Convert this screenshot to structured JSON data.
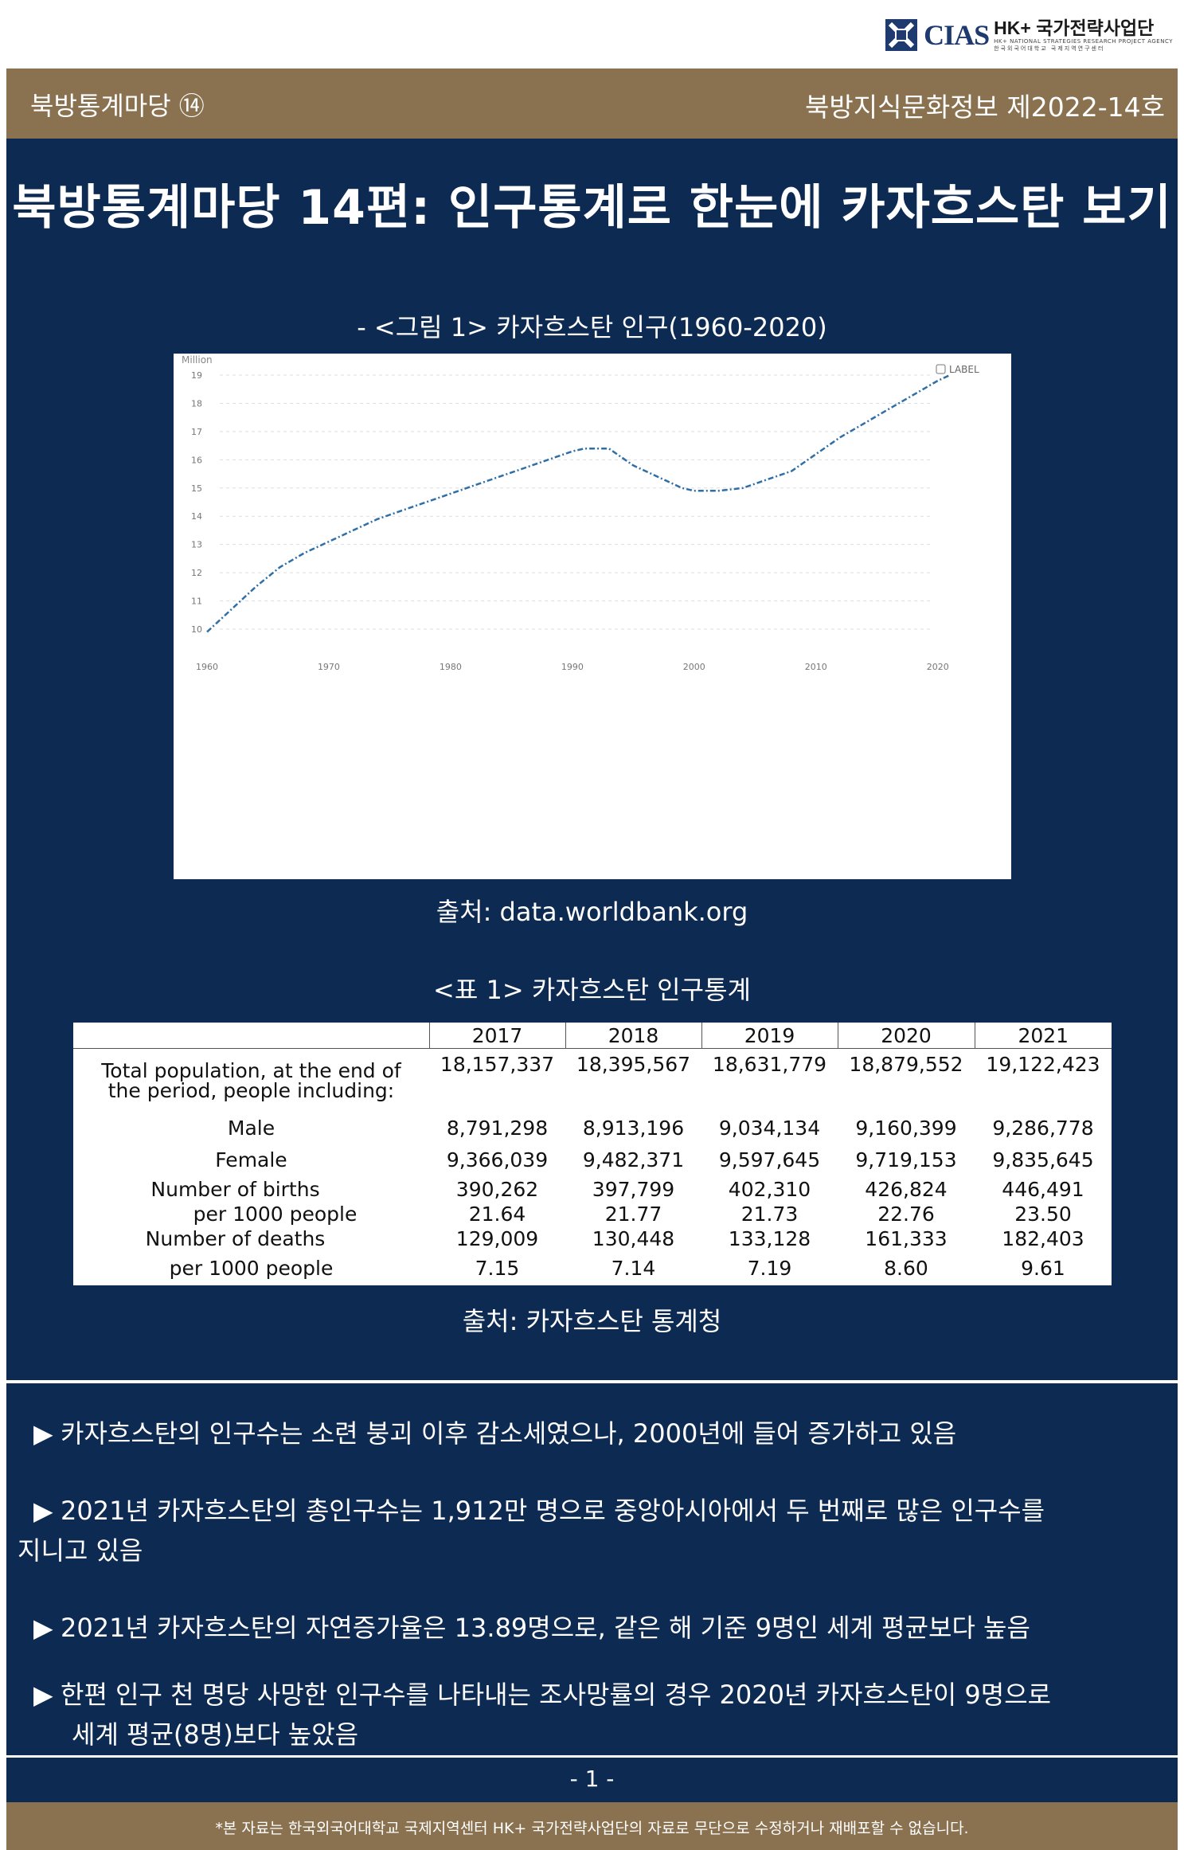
{
  "header": {
    "logo_text": "CIAS",
    "logo_hk": "HK+ 국가전략사업단",
    "logo_sub_en": "HK+ NATIONAL STRATEGIES RESEARCH PROJECT AGENCY",
    "logo_sub_kr": "한국외국어대학교 국제지역연구센터"
  },
  "band": {
    "left": "북방통계마당 ⑭",
    "right": "북방지식문화정보 제2022-14호"
  },
  "title": "북방통계마당 14편: 인구통계로 한눈에 카자흐스탄 보기",
  "figure": {
    "caption": "- <그림 1> 카자흐스탄 인구(1960-2020)",
    "source": "출처: data.worldbank.org"
  },
  "chart_data": {
    "type": "line",
    "ylabel": "Million",
    "legend_label": "LABEL",
    "legend_position": "top-right",
    "grid": true,
    "xlim": [
      1960,
      2021
    ],
    "ylim": [
      10,
      19
    ],
    "x_ticks": [
      "1960",
      "1970",
      "1980",
      "1990",
      "2000",
      "2010",
      "2020"
    ],
    "y_ticks": [
      "10",
      "11",
      "12",
      "13",
      "14",
      "15",
      "16",
      "17",
      "18",
      "19"
    ],
    "color": "#2f6fa8",
    "x": [
      1960,
      1962,
      1964,
      1966,
      1968,
      1970,
      1972,
      1974,
      1976,
      1978,
      1980,
      1982,
      1984,
      1986,
      1988,
      1990,
      1991,
      1993,
      1995,
      1997,
      1999,
      2000,
      2002,
      2004,
      2006,
      2008,
      2010,
      2012,
      2014,
      2016,
      2018,
      2020,
      2021
    ],
    "values": [
      9.9,
      10.7,
      11.5,
      12.2,
      12.7,
      13.1,
      13.5,
      13.9,
      14.2,
      14.5,
      14.8,
      15.1,
      15.4,
      15.7,
      16.0,
      16.3,
      16.4,
      16.4,
      15.8,
      15.4,
      15.0,
      14.9,
      14.9,
      15.0,
      15.3,
      15.6,
      16.2,
      16.8,
      17.3,
      17.8,
      18.3,
      18.8,
      19.0
    ]
  },
  "table": {
    "caption": "<표 1> 카자흐스탄 인구통계",
    "source": "출처: 카자흐스탄 통계청",
    "years": [
      "2017",
      "2018",
      "2019",
      "2020",
      "2021"
    ],
    "rows": [
      {
        "label": "Total population, at the end of the period, people including:",
        "values": [
          "18,157,337",
          "18,395,567",
          "18,631,779",
          "18,879,552",
          "19,122,423"
        ]
      },
      {
        "label": "Male",
        "values": [
          "8,791,298",
          "8,913,196",
          "9,034,134",
          "9,160,399",
          "9,286,778"
        ]
      },
      {
        "label": "Female",
        "values": [
          "9,366,039",
          "9,482,371",
          "9,597,645",
          "9,719,153",
          "9,835,645"
        ]
      },
      {
        "label": "Number of births",
        "values": [
          "390,262",
          "397,799",
          "402,310",
          "426,824",
          "446,491"
        ]
      },
      {
        "label": "per 1000 people",
        "values": [
          "21.64",
          "21.77",
          "21.73",
          "22.76",
          "23.50"
        ]
      },
      {
        "label": "Number of deaths",
        "values": [
          "129,009",
          "130,448",
          "133,128",
          "161,333",
          "182,403"
        ]
      },
      {
        "label": "per 1000 people",
        "values": [
          "7.15",
          "7.14",
          "7.19",
          "8.60",
          "9.61"
        ]
      }
    ]
  },
  "bullets": {
    "arrow": "▶",
    "b1": "카자흐스탄의 인구수는 소련 붕괴 이후 감소세였으나, 2000년에 들어 증가하고 있음",
    "b2_line1": "2021년 카자흐스탄의 총인구수는 1,912만 명으로 중앙아시아에서 두 번째로 많은 인구수를",
    "b2_line2": "지니고 있음",
    "b3": "2021년 카자흐스탄의 자연증가율은 13.89명으로, 같은 해 기준 9명인 세계 평균보다 높음",
    "b4_line1": "한편 인구 천 명당 사망한 인구수를 나타내는 조사망률의 경우 2020년 카자흐스탄이 9명으로",
    "b4_line2": "세계 평균(8명)보다 높았음"
  },
  "page_number": "- 1 -",
  "footer": "*본 자료는 한국외국어대학교 국제지역센터 HK+ 국가전략사업단의 자료로 무단으로 수정하거나 재배포할 수 없습니다."
}
